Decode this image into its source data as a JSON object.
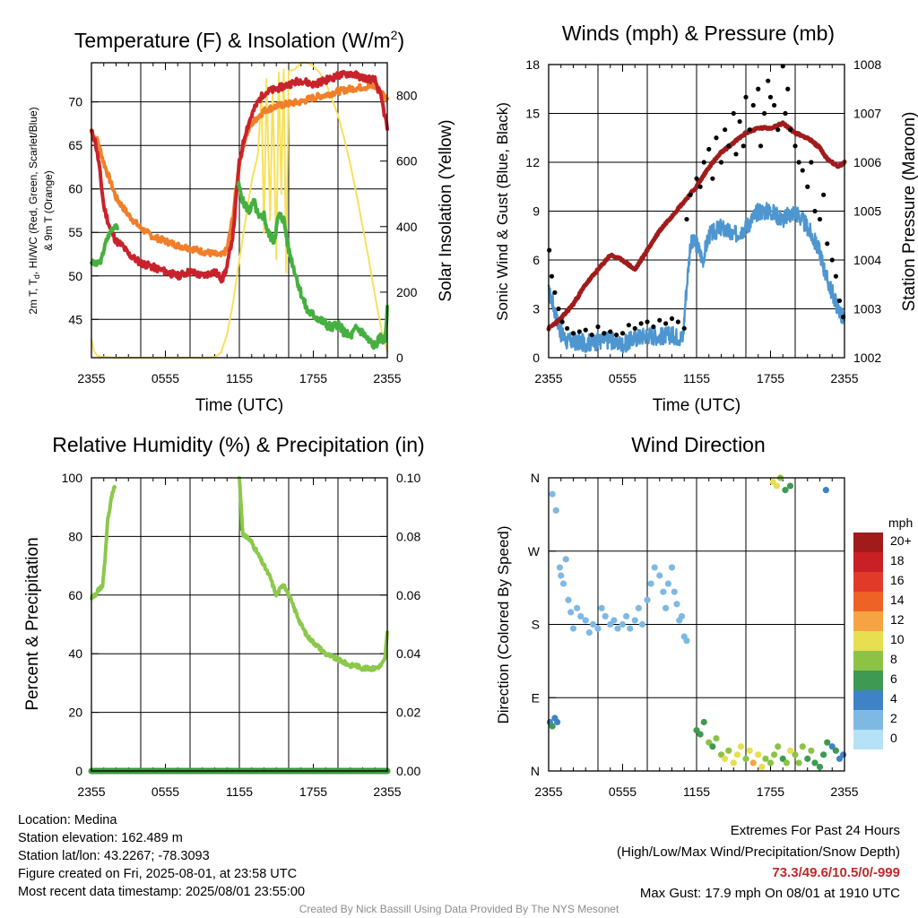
{
  "meta": {
    "location": "Location: Medina",
    "elevation": "Station elevation: 162.489 m",
    "latlon": "Station lat/lon: 43.2267; -78.3093",
    "created": "Figure created on Fri, 2025-08-01, at 23:58 UTC",
    "recent": "Most recent data timestamp: 2025/08/01 23:55:00"
  },
  "extremes": {
    "title": "Extremes For Past 24 Hours",
    "subtitle": "(High/Low/Max Wind/Precipitation/Snow Depth)",
    "values": "73.3/49.6/10.5/0/-999",
    "gust": "Max Gust: 17.9 mph On 08/01 at 1910 UTC"
  },
  "credit": "Created By Nick Bassill Using Data Provided By The NYS Mesonet",
  "colors": {
    "temp": "#c8232c",
    "nine_m": "#f07f2a",
    "dew": "#45b040",
    "solar": "#f7e15a",
    "wind": "#4e96d0",
    "gust": "#000000",
    "pressure": "#a01c1c",
    "rh": "#8cc84b",
    "precip": "#3c9a3c"
  },
  "chart_data": [
    {
      "type": "line",
      "title": "Temperature (F) & Insolation (W/m²)",
      "xlabel": "Time (UTC)",
      "ylabel": "2m T, Td, HI/WC (Red, Green, Scarlet/Blue) & 9m T (Orange)",
      "ylabel_line1": "2m T, T",
      "ylabel_sub": "d",
      "ylabel_line1_rest": ", HI/WC (Red, Green, Scarlet/Blue)",
      "ylabel_line2": "& 9m T (Orange)",
      "y2label": "Solar Insolation (Yellow)",
      "x_hours_since_start": [
        0,
        6,
        12,
        18,
        24
      ],
      "x_ticklabels": [
        "2355",
        "0555",
        "1155",
        "1755",
        "2355"
      ],
      "ylim": [
        40.6,
        74.5
      ],
      "y_ticks": [
        45,
        50,
        55,
        60,
        65,
        70
      ],
      "y2lim": [
        0,
        900
      ],
      "y2_ticks": [
        0,
        200,
        400,
        600,
        800
      ],
      "grid": true,
      "series": [
        {
          "key": "temp_2m",
          "axis": "left",
          "x": [
            0,
            0.3,
            0.6,
            1,
            1.5,
            2,
            2.5,
            3,
            4,
            5,
            6,
            7,
            8,
            9,
            10,
            10.6,
            11,
            11.5,
            12,
            12.5,
            13,
            13.5,
            14,
            15,
            16,
            17,
            18,
            19,
            20,
            21,
            22,
            23,
            23.5,
            24
          ],
          "y": [
            66.6,
            65.5,
            63,
            58,
            55.5,
            54,
            53.5,
            52.5,
            51.5,
            51,
            50.5,
            50,
            50.5,
            50,
            50.5,
            49.6,
            51,
            55,
            63,
            66.5,
            68.5,
            70,
            71,
            71.5,
            72,
            72.5,
            72,
            72.5,
            73,
            73.3,
            72.8,
            72.5,
            70.5,
            67
          ]
        },
        {
          "key": "temp_9m",
          "axis": "left",
          "x": [
            0,
            0.5,
            1,
            1.5,
            2,
            3,
            4,
            5,
            6,
            7,
            8,
            9,
            10,
            10.5,
            11,
            11.5,
            12,
            12.5,
            13,
            14,
            15,
            16,
            17,
            18,
            19,
            20,
            21,
            22,
            23,
            23.5,
            24
          ],
          "y": [
            66.5,
            65.5,
            63,
            61,
            59,
            57,
            55.5,
            54.5,
            54,
            53.5,
            53.2,
            52.8,
            52.5,
            52.3,
            53,
            57,
            63,
            66,
            67.5,
            69,
            69.5,
            69.8,
            70,
            70.5,
            70.8,
            71.2,
            71.5,
            71.7,
            71.8,
            71.2,
            70.2
          ]
        },
        {
          "key": "dewpoint",
          "axis": "left",
          "x": [
            0,
            0.4,
            0.8,
            1,
            1.2,
            1.5,
            1.7,
            1.9,
            2.1
          ],
          "y": [
            51.6,
            51.3,
            51.8,
            53,
            54,
            55,
            55.5,
            55.8,
            55.4
          ]
        },
        {
          "key": "dewpoint_pm",
          "axis": "left",
          "x": [
            11.9,
            12.3,
            12.8,
            13.2,
            13.6,
            14,
            14.3,
            14.8,
            15.2,
            15.6,
            16,
            16.5,
            17,
            17.5,
            18,
            18.5,
            19,
            19.5,
            20,
            20.5,
            21,
            21.5,
            22,
            22.5,
            23,
            23.5,
            23.8,
            24
          ],
          "y": [
            60.6,
            58.5,
            57.5,
            58.5,
            56.5,
            57,
            55,
            54,
            57,
            56.5,
            53,
            50.5,
            48,
            46,
            45.5,
            45,
            44.5,
            44,
            44.5,
            43.5,
            43,
            44,
            43.5,
            42.5,
            42,
            43,
            42.5,
            46
          ]
        },
        {
          "key": "solar",
          "axis": "right",
          "x": [
            0,
            0.2,
            0.5,
            1,
            2,
            4,
            6,
            8,
            9.5,
            10,
            10.5,
            11,
            11.5,
            12,
            12.5,
            13,
            13.5,
            13.8,
            14,
            14.2,
            14.5,
            14.7,
            15,
            15.2,
            15.4,
            15.6,
            15.8,
            16,
            16.5,
            17,
            17.5,
            18,
            18.5,
            19,
            19.5,
            20,
            20.5,
            21,
            21.5,
            22,
            22.5,
            23,
            23.5,
            24
          ],
          "y": [
            55,
            20,
            5,
            2,
            0,
            0,
            0,
            0,
            0,
            2,
            15,
            70,
            170,
            300,
            420,
            540,
            620,
            800,
            380,
            850,
            420,
            830,
            300,
            870,
            500,
            880,
            260,
            875,
            880,
            900,
            900,
            890,
            870,
            840,
            790,
            740,
            670,
            590,
            500,
            400,
            300,
            190,
            90,
            20
          ]
        }
      ]
    },
    {
      "type": "scatter",
      "title": "Winds (mph) & Pressure (mb)",
      "xlabel": "Time (UTC)",
      "ylabel": "Sonic Wind & Gust (Blue, Black)",
      "y2label": "Station Pressure (Maroon)",
      "x_ticklabels": [
        "2355",
        "0555",
        "1155",
        "1755",
        "2355"
      ],
      "ylim": [
        0,
        18
      ],
      "y_ticks": [
        0,
        3,
        6,
        9,
        12,
        15,
        18
      ],
      "y2lim": [
        1002,
        1008
      ],
      "y2_ticks": [
        1002,
        1003,
        1004,
        1005,
        1006,
        1007,
        1008
      ],
      "y2_ticklabels": [
        "1002",
        "1003",
        "1004",
        "1005",
        "1006",
        "1007",
        "1008"
      ],
      "grid": true,
      "series": [
        {
          "key": "wind",
          "axis": "left",
          "x": [
            0,
            0.3,
            0.6,
            1,
            1.5,
            2,
            3,
            4,
            5,
            6,
            7,
            8,
            9,
            10,
            10.9,
            11.1,
            11.5,
            12,
            12.5,
            13,
            14,
            15,
            16,
            17,
            18,
            19,
            20,
            21,
            22,
            22.5,
            23,
            23.5,
            24
          ],
          "y": [
            4,
            3.5,
            2.5,
            1.5,
            1,
            1,
            0.9,
            1,
            1.1,
            0.8,
            1.2,
            1.4,
            1.3,
            1.4,
            1.2,
            3.5,
            7,
            7,
            6,
            7.5,
            8,
            7.5,
            8,
            9,
            9,
            8.5,
            9,
            8,
            6.5,
            5,
            4,
            3,
            2.2
          ]
        },
        {
          "key": "pressure",
          "axis": "right",
          "x": [
            0,
            1,
            2,
            3,
            4,
            5,
            6,
            7,
            8,
            9,
            10,
            11,
            12,
            13,
            14,
            15,
            16,
            17,
            18,
            19,
            20,
            21,
            22,
            22.5,
            23,
            23.5,
            24
          ],
          "y": [
            1002.6,
            1002.8,
            1003.1,
            1003.5,
            1003.8,
            1004.1,
            1004.0,
            1003.8,
            1004.2,
            1004.6,
            1004.9,
            1005.2,
            1005.5,
            1005.9,
            1006.2,
            1006.4,
            1006.6,
            1006.7,
            1006.7,
            1006.8,
            1006.6,
            1006.5,
            1006.3,
            1006.1,
            1006.0,
            1005.9,
            1006.0
          ]
        },
        {
          "key": "gust",
          "axis": "left",
          "mark": "dot",
          "x": [
            0.05,
            0.25,
            0.5,
            0.8,
            1.1,
            1.5,
            2,
            2.5,
            3,
            3.5,
            4,
            4.5,
            5,
            5.5,
            6,
            6.5,
            7,
            7.5,
            8,
            8.5,
            9,
            9.5,
            10,
            10.5,
            11,
            11.2,
            11.5,
            12,
            12.3,
            12.6,
            13,
            13.3,
            13.6,
            14,
            14.3,
            14.6,
            15,
            15.2,
            15.5,
            15.8,
            16,
            16.3,
            16.6,
            17,
            17.2,
            17.5,
            17.8,
            18,
            18.3,
            18.6,
            19,
            19.2,
            19.4,
            19.6,
            20,
            20.3,
            20.6,
            21,
            21.3,
            21.6,
            22,
            22.3,
            22.6,
            23,
            23.3,
            23.6,
            23.9
          ],
          "y": [
            6.6,
            5,
            4,
            3,
            2.2,
            1.8,
            1.5,
            1.6,
            1.7,
            1.4,
            1.9,
            1.5,
            1.6,
            1.4,
            1.5,
            2,
            1.8,
            2.1,
            2.2,
            1.9,
            2.3,
            2.1,
            2.4,
            2.2,
            1.8,
            8.5,
            10,
            11,
            10.5,
            12,
            12.8,
            11,
            13.5,
            12,
            14,
            13,
            15,
            12.5,
            14.5,
            13,
            16,
            14,
            15.5,
            16.5,
            13,
            15,
            17,
            16,
            15.5,
            14,
            17.9,
            15,
            16.5,
            14,
            13,
            12,
            11.5,
            10.5,
            12,
            9,
            8.5,
            10,
            7,
            6,
            5,
            3.5,
            2.5
          ]
        }
      ]
    },
    {
      "type": "line",
      "title": "Relative Humidity (%) & Precipitation (in)",
      "ylabel": "Percent & Precipitation",
      "x_ticklabels": [
        "2355",
        "0555",
        "1155",
        "1755",
        "2355"
      ],
      "ylim": [
        0,
        100
      ],
      "y_ticks": [
        0,
        20,
        40,
        60,
        80,
        100
      ],
      "y2lim": [
        0,
        0.1
      ],
      "y2_ticks": [
        0,
        0.02,
        0.04,
        0.06,
        0.08,
        0.1
      ],
      "y2_ticklabels": [
        "0.00",
        "0.02",
        "0.04",
        "0.06",
        "0.08",
        "0.10"
      ],
      "grid": true,
      "series": [
        {
          "key": "rh_am",
          "axis": "left",
          "x": [
            0,
            0.3,
            0.6,
            0.9,
            1.1,
            1.3,
            1.5,
            1.7,
            1.9
          ],
          "y": [
            59,
            60,
            62,
            63,
            72,
            85,
            90,
            95,
            97
          ]
        },
        {
          "key": "rh_pm",
          "axis": "left",
          "x": [
            12,
            12.3,
            12.6,
            13,
            13.5,
            14,
            14.5,
            15,
            15.3,
            15.6,
            16,
            16.5,
            17,
            17.5,
            18,
            18.5,
            19,
            19.5,
            20,
            20.5,
            21,
            21.5,
            22,
            22.5,
            23,
            23.5,
            23.8,
            24
          ],
          "y": [
            100,
            80,
            80,
            78,
            74,
            70,
            66,
            60,
            62,
            64,
            60,
            55,
            50,
            46,
            44,
            42,
            40,
            39,
            38,
            37,
            36,
            36,
            35,
            35,
            35,
            36,
            38,
            47
          ]
        },
        {
          "key": "precip",
          "axis": "right",
          "x": [
            0,
            24
          ],
          "y": [
            0,
            0
          ]
        }
      ]
    },
    {
      "type": "scatter",
      "title": "Wind Direction",
      "ylabel": "Direction (Colored By Speed)",
      "x_ticklabels": [
        "2355",
        "0555",
        "1155",
        "1755",
        "2355"
      ],
      "ylim": [
        0,
        360
      ],
      "y_ticks": [
        0,
        90,
        180,
        270,
        360
      ],
      "y_ticklabels": [
        "N",
        "E",
        "S",
        "W",
        "N"
      ],
      "legend": {
        "title": "mph",
        "labels": [
          "20+",
          "18",
          "16",
          "14",
          "12",
          "10",
          "8",
          "6",
          "4",
          "2",
          "0"
        ],
        "colors": [
          "#a11b1b",
          "#c82024",
          "#e23a2a",
          "#ef6226",
          "#f6a443",
          "#e7de52",
          "#8cc346",
          "#3e9a52",
          "#3f83c6",
          "#7eb9e4",
          "#b6e2f7"
        ],
        "placement": "right"
      },
      "points_t": [
        0.1,
        0.3,
        0.5,
        0.7,
        1,
        1.2,
        1.4,
        1.6,
        1.8,
        2,
        2.3,
        2.6,
        3,
        3.3,
        3.6,
        4,
        4.3,
        4.6,
        5,
        5.3,
        5.6,
        6,
        6.3,
        6.6,
        7,
        7.3,
        7.6,
        8,
        8.3,
        8.6,
        9,
        9.3,
        9.5,
        9.7,
        10,
        10.2,
        10.4,
        10.6,
        10.8,
        11,
        11.2,
        12,
        12.3,
        12.6,
        13,
        13.3,
        13.6,
        14,
        14.3,
        14.6,
        15,
        15.3,
        15.6,
        16,
        16.3,
        16.6,
        17,
        17.3,
        17.6,
        18,
        18.3,
        18.6,
        19,
        19.3,
        19.6,
        20,
        20.3,
        20.6,
        21,
        21.3,
        21.6,
        22,
        22.3,
        22.6,
        23,
        23.3,
        23.6,
        23.9,
        0.3,
        0.6,
        0.9,
        18.2,
        18.5,
        18.8,
        19.2,
        19.6,
        22.5
      ],
      "points_dir": [
        60,
        55,
        65,
        60,
        240,
        230,
        260,
        210,
        195,
        175,
        200,
        190,
        185,
        170,
        180,
        175,
        200,
        190,
        180,
        185,
        175,
        180,
        190,
        175,
        185,
        200,
        180,
        210,
        230,
        250,
        240,
        220,
        200,
        230,
        250,
        220,
        205,
        185,
        190,
        165,
        160,
        50,
        45,
        60,
        35,
        30,
        40,
        20,
        15,
        25,
        10,
        20,
        30,
        15,
        25,
        10,
        20,
        5,
        15,
        10,
        20,
        30,
        15,
        10,
        25,
        20,
        10,
        30,
        15,
        25,
        10,
        5,
        20,
        35,
        30,
        25,
        15,
        20,
        340,
        320,
        250,
        355,
        350,
        360,
        345,
        350,
        345
      ],
      "points_speed": [
        4,
        5,
        4,
        4,
        2,
        1,
        1,
        1,
        1,
        1,
        1,
        2,
        1,
        1,
        1,
        2,
        1,
        1,
        1,
        1,
        1,
        1,
        2,
        1,
        1,
        1,
        1,
        2,
        1,
        1,
        1,
        1,
        1,
        1,
        1,
        1,
        1,
        1,
        1,
        1,
        1,
        5,
        5,
        6,
        7,
        6,
        8,
        8,
        9,
        8,
        9,
        10,
        9,
        8,
        10,
        11,
        10,
        9,
        8,
        7,
        8,
        7,
        6,
        8,
        9,
        8,
        7,
        8,
        6,
        7,
        6,
        5,
        6,
        5,
        4,
        5,
        4,
        4,
        1,
        1,
        1,
        10,
        9,
        8,
        6,
        6,
        4
      ]
    }
  ]
}
